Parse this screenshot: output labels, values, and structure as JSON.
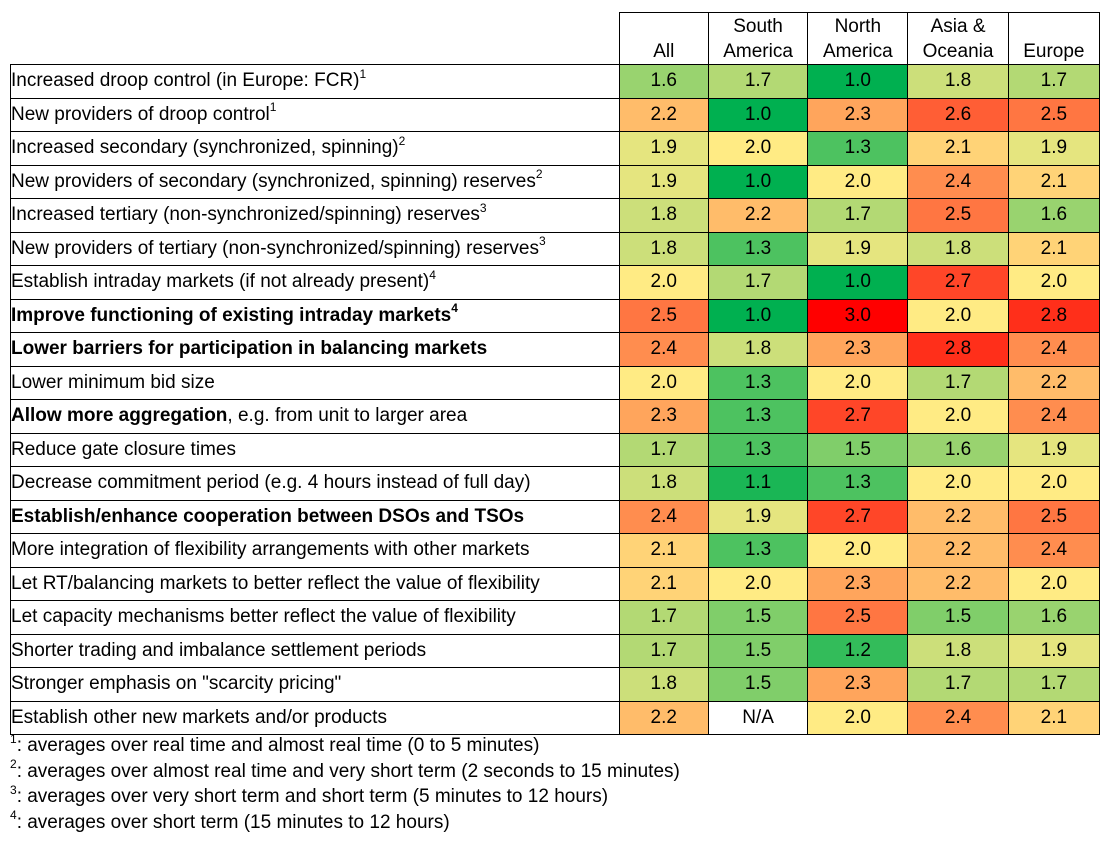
{
  "chart_data": {
    "type": "heatmap",
    "columns": [
      "All",
      "South America",
      "North America",
      "Asia & Oceania",
      "Europe"
    ],
    "column_headers": [
      {
        "line1": "",
        "line2": "All"
      },
      {
        "line1": "South",
        "line2": "America"
      },
      {
        "line1": "North",
        "line2": "America"
      },
      {
        "line1": "Asia &",
        "line2": "Oceania"
      },
      {
        "line1": "",
        "line2": "Europe"
      }
    ],
    "color_scale": {
      "min": 1.0,
      "max": 3.0,
      "low_color": "#00b050",
      "mid_color": "#ffeb84",
      "high_color": "#ff0000",
      "na_color": "#ffffff"
    },
    "rows": [
      {
        "label": "Increased droop control (in Europe: FCR)",
        "note": "1",
        "bold": false,
        "indent": false,
        "values": [
          1.6,
          1.7,
          1.0,
          1.8,
          1.7
        ]
      },
      {
        "label": "New providers of droop control",
        "note": "1",
        "bold": false,
        "indent": false,
        "values": [
          2.2,
          1.0,
          2.3,
          2.6,
          2.5
        ]
      },
      {
        "label": "Increased secondary (synchronized, spinning)",
        "note": "2",
        "bold": false,
        "indent": false,
        "values": [
          1.9,
          2.0,
          1.3,
          2.1,
          1.9
        ]
      },
      {
        "label": "New providers of secondary (synchronized, spinning) reserves",
        "note": "2",
        "bold": false,
        "indent": false,
        "values": [
          1.9,
          1.0,
          2.0,
          2.4,
          2.1
        ]
      },
      {
        "label": "Increased tertiary (non-synchronized/spinning) reserves",
        "note": "3",
        "bold": false,
        "indent": false,
        "values": [
          1.8,
          2.2,
          1.7,
          2.5,
          1.6
        ]
      },
      {
        "label": "New providers of tertiary (non-synchronized/spinning) reserves",
        "note": "3",
        "bold": false,
        "indent": false,
        "values": [
          1.8,
          1.3,
          1.9,
          1.8,
          2.1
        ]
      },
      {
        "label": "Establish intraday markets (if not already present)",
        "note": "4",
        "bold": false,
        "indent": false,
        "values": [
          2.0,
          1.7,
          1.0,
          2.7,
          2.0
        ]
      },
      {
        "label": "Improve functioning of existing intraday markets",
        "note": "4",
        "bold": true,
        "indent": false,
        "values": [
          2.5,
          1.0,
          3.0,
          2.0,
          2.8
        ]
      },
      {
        "label": "Lower barriers for participation in balancing markets",
        "note": "",
        "bold": true,
        "indent": false,
        "values": [
          2.4,
          1.8,
          2.3,
          2.8,
          2.4
        ]
      },
      {
        "label": "Lower minimum bid size",
        "note": "",
        "bold": false,
        "indent": true,
        "values": [
          2.0,
          1.3,
          2.0,
          1.7,
          2.2
        ]
      },
      {
        "label": "Allow more aggregation",
        "label_rest": ", e.g. from unit to larger area",
        "note": "",
        "bold": true,
        "indent": true,
        "values": [
          2.3,
          1.3,
          2.7,
          2.0,
          2.4
        ]
      },
      {
        "label": "Reduce gate closure times",
        "note": "",
        "bold": false,
        "indent": true,
        "values": [
          1.7,
          1.3,
          1.5,
          1.6,
          1.9
        ]
      },
      {
        "label": "Decrease commitment period (e.g. 4 hours instead of full day)",
        "note": "",
        "bold": false,
        "indent": true,
        "values": [
          1.8,
          1.1,
          1.3,
          2.0,
          2.0
        ]
      },
      {
        "label": "Establish/enhance cooperation between DSOs and TSOs",
        "note": "",
        "bold": true,
        "indent": false,
        "values": [
          2.4,
          1.9,
          2.7,
          2.2,
          2.5
        ]
      },
      {
        "label": "More integration of flexibility arrangements with other markets",
        "note": "",
        "bold": false,
        "indent": false,
        "values": [
          2.1,
          1.3,
          2.0,
          2.2,
          2.4
        ]
      },
      {
        "label": "Let RT/balancing markets to better reflect the value of flexibility",
        "note": "",
        "bold": false,
        "indent": false,
        "values": [
          2.1,
          2.0,
          2.3,
          2.2,
          2.0
        ]
      },
      {
        "label": "Let capacity mechanisms better reflect the value of flexibility",
        "note": "",
        "bold": false,
        "indent": false,
        "values": [
          1.7,
          1.5,
          2.5,
          1.5,
          1.6
        ]
      },
      {
        "label": "Shorter trading and imbalance settlement periods",
        "note": "",
        "bold": false,
        "indent": false,
        "values": [
          1.7,
          1.5,
          1.2,
          1.8,
          1.9
        ]
      },
      {
        "label": "Stronger emphasis on \"scarcity pricing\"",
        "note": "",
        "bold": false,
        "indent": false,
        "values": [
          1.8,
          1.5,
          2.3,
          1.7,
          1.7
        ]
      },
      {
        "label": "Establish other new markets and/or products",
        "note": "",
        "bold": false,
        "indent": false,
        "values": [
          2.2,
          "N/A",
          2.0,
          2.4,
          2.1
        ]
      }
    ],
    "footnotes": [
      {
        "mark": "1",
        "text": ": averages over real time and almost real time (0 to 5 minutes)"
      },
      {
        "mark": "2",
        "text": ": averages over almost real time and very short term (2 seconds to 15 minutes)"
      },
      {
        "mark": "3",
        "text": ": averages over very short term and short term (5 minutes to 12 hours)"
      },
      {
        "mark": "4",
        "text": ": averages over short term (15 minutes to 12 hours)"
      }
    ]
  }
}
